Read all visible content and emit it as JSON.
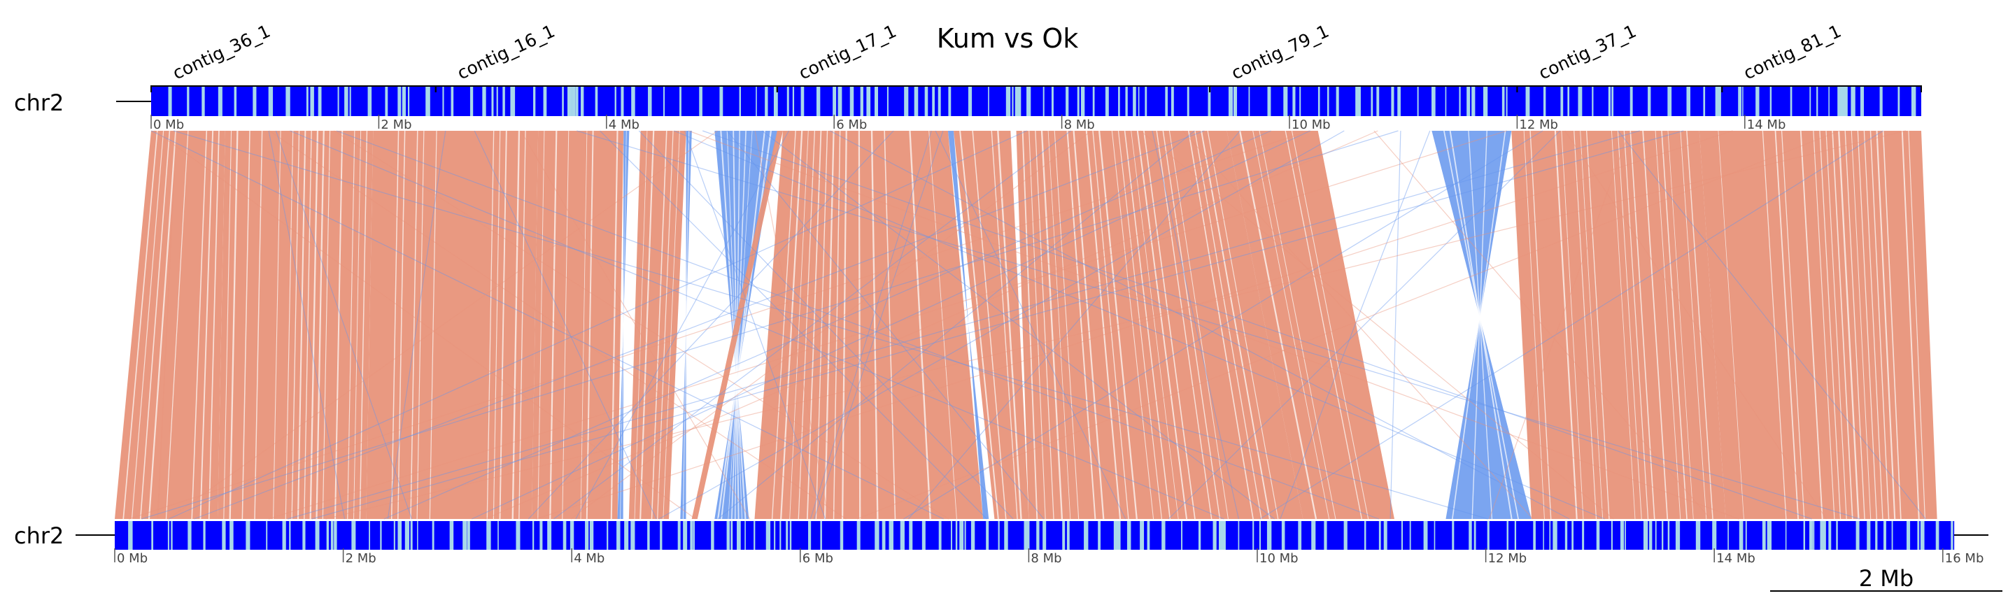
{
  "title": "Kum vs Ok",
  "top": {
    "chrom": "chr2",
    "tick_labels": [
      "0 Mb",
      "2 Mb",
      "4 Mb",
      "6 Mb",
      "8 Mb",
      "10 Mb",
      "12 Mb",
      "14 Mb"
    ],
    "contigs": [
      {
        "name": "contig_36_1",
        "start_mb": 0.0,
        "end_mb": 2.5
      },
      {
        "name": "contig_16_1",
        "start_mb": 2.5,
        "end_mb": 5.5
      },
      {
        "name": "contig_17_1",
        "start_mb": 5.5,
        "end_mb": 9.3
      },
      {
        "name": "contig_79_1",
        "start_mb": 9.3,
        "end_mb": 12.0
      },
      {
        "name": "contig_37_1",
        "start_mb": 12.0,
        "end_mb": 13.8
      },
      {
        "name": "contig_81_1",
        "start_mb": 13.8,
        "end_mb": 15.55
      }
    ],
    "length_mb": 15.55
  },
  "bottom": {
    "chrom": "chr2",
    "tick_labels": [
      "0 Mb",
      "2 Mb",
      "4 Mb",
      "6 Mb",
      "8 Mb",
      "10 Mb",
      "12 Mb",
      "14 Mb",
      "16 Mb"
    ],
    "length_mb": 16.1
  },
  "scale_bar": "2 Mb",
  "colors": {
    "collinear": "#e8937a",
    "inverted": "#6495ed",
    "block_dark": "#0000ff",
    "block_light": "#a8d8ea"
  },
  "chart_data": {
    "type": "synteny",
    "segments": [
      {
        "top": [
          0.0,
          0.65
        ],
        "bottom": [
          0.0,
          0.9
        ],
        "orientation": "forward"
      },
      {
        "top": [
          0.65,
          1.95
        ],
        "bottom": [
          0.9,
          2.2
        ],
        "orientation": "forward"
      },
      {
        "top": [
          1.95,
          3.4
        ],
        "bottom": [
          2.2,
          3.65
        ],
        "orientation": "forward"
      },
      {
        "top": [
          3.4,
          4.15
        ],
        "bottom": [
          3.65,
          4.4
        ],
        "orientation": "forward"
      },
      {
        "top": [
          4.15,
          4.2
        ],
        "bottom": [
          4.4,
          4.45
        ],
        "orientation": "inverted"
      },
      {
        "top": [
          4.3,
          4.7
        ],
        "bottom": [
          4.5,
          4.85
        ],
        "orientation": "forward"
      },
      {
        "top": [
          4.7,
          4.75
        ],
        "bottom": [
          4.95,
          5.0
        ],
        "orientation": "inverted"
      },
      {
        "top": [
          4.95,
          5.5
        ],
        "bottom": [
          5.25,
          5.55
        ],
        "orientation": "inverted"
      },
      {
        "top": [
          5.5,
          5.55
        ],
        "bottom": [
          5.05,
          5.1
        ],
        "orientation": "forward"
      },
      {
        "top": [
          5.55,
          7.0
        ],
        "bottom": [
          5.6,
          7.6
        ],
        "orientation": "forward"
      },
      {
        "top": [
          7.0,
          7.05
        ],
        "bottom": [
          7.6,
          7.65
        ],
        "orientation": "inverted"
      },
      {
        "top": [
          7.05,
          7.55
        ],
        "bottom": [
          7.7,
          8.0
        ],
        "orientation": "forward"
      },
      {
        "top": [
          7.6,
          9.45
        ],
        "bottom": [
          8.0,
          10.4
        ],
        "orientation": "forward"
      },
      {
        "top": [
          9.45,
          10.25
        ],
        "bottom": [
          10.4,
          11.2
        ],
        "orientation": "forward"
      },
      {
        "top": [
          11.25,
          11.95
        ],
        "bottom": [
          11.65,
          12.4
        ],
        "orientation": "inverted"
      },
      {
        "top": [
          11.95,
          13.6
        ],
        "bottom": [
          12.4,
          14.1
        ],
        "orientation": "forward"
      },
      {
        "top": [
          13.6,
          15.55
        ],
        "bottom": [
          14.1,
          15.95
        ],
        "orientation": "forward"
      }
    ]
  }
}
